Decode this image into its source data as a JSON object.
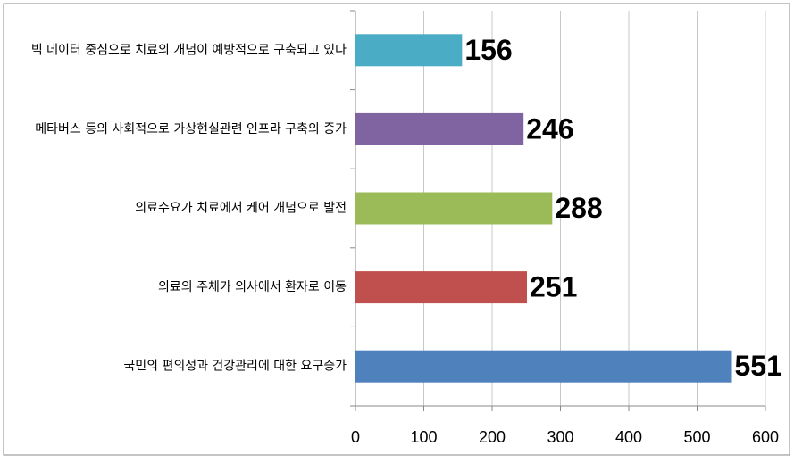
{
  "chart_data": {
    "type": "bar",
    "orientation": "horizontal",
    "categories": [
      "빅 데이터 중심으로 치료의 개념이 예방적으로 구축되고 있다",
      "메타버스 등의 사회적으로 가상현실관련 인프라 구축의 증가",
      "의료수요가 치료에서 케어 개념으로 발전",
      "의료의 주체가 의사에서 환자로 이동",
      "국민의 편의성과 건강관리에 대한 요구증가"
    ],
    "values": [
      156,
      246,
      288,
      251,
      551
    ],
    "colors": [
      "#4bacc6",
      "#8064a2",
      "#9bbb59",
      "#c0504d",
      "#4f81bd"
    ],
    "xlim": [
      0,
      600
    ],
    "xticks": [
      0,
      100,
      200,
      300,
      400,
      500,
      600
    ],
    "grid": true
  }
}
